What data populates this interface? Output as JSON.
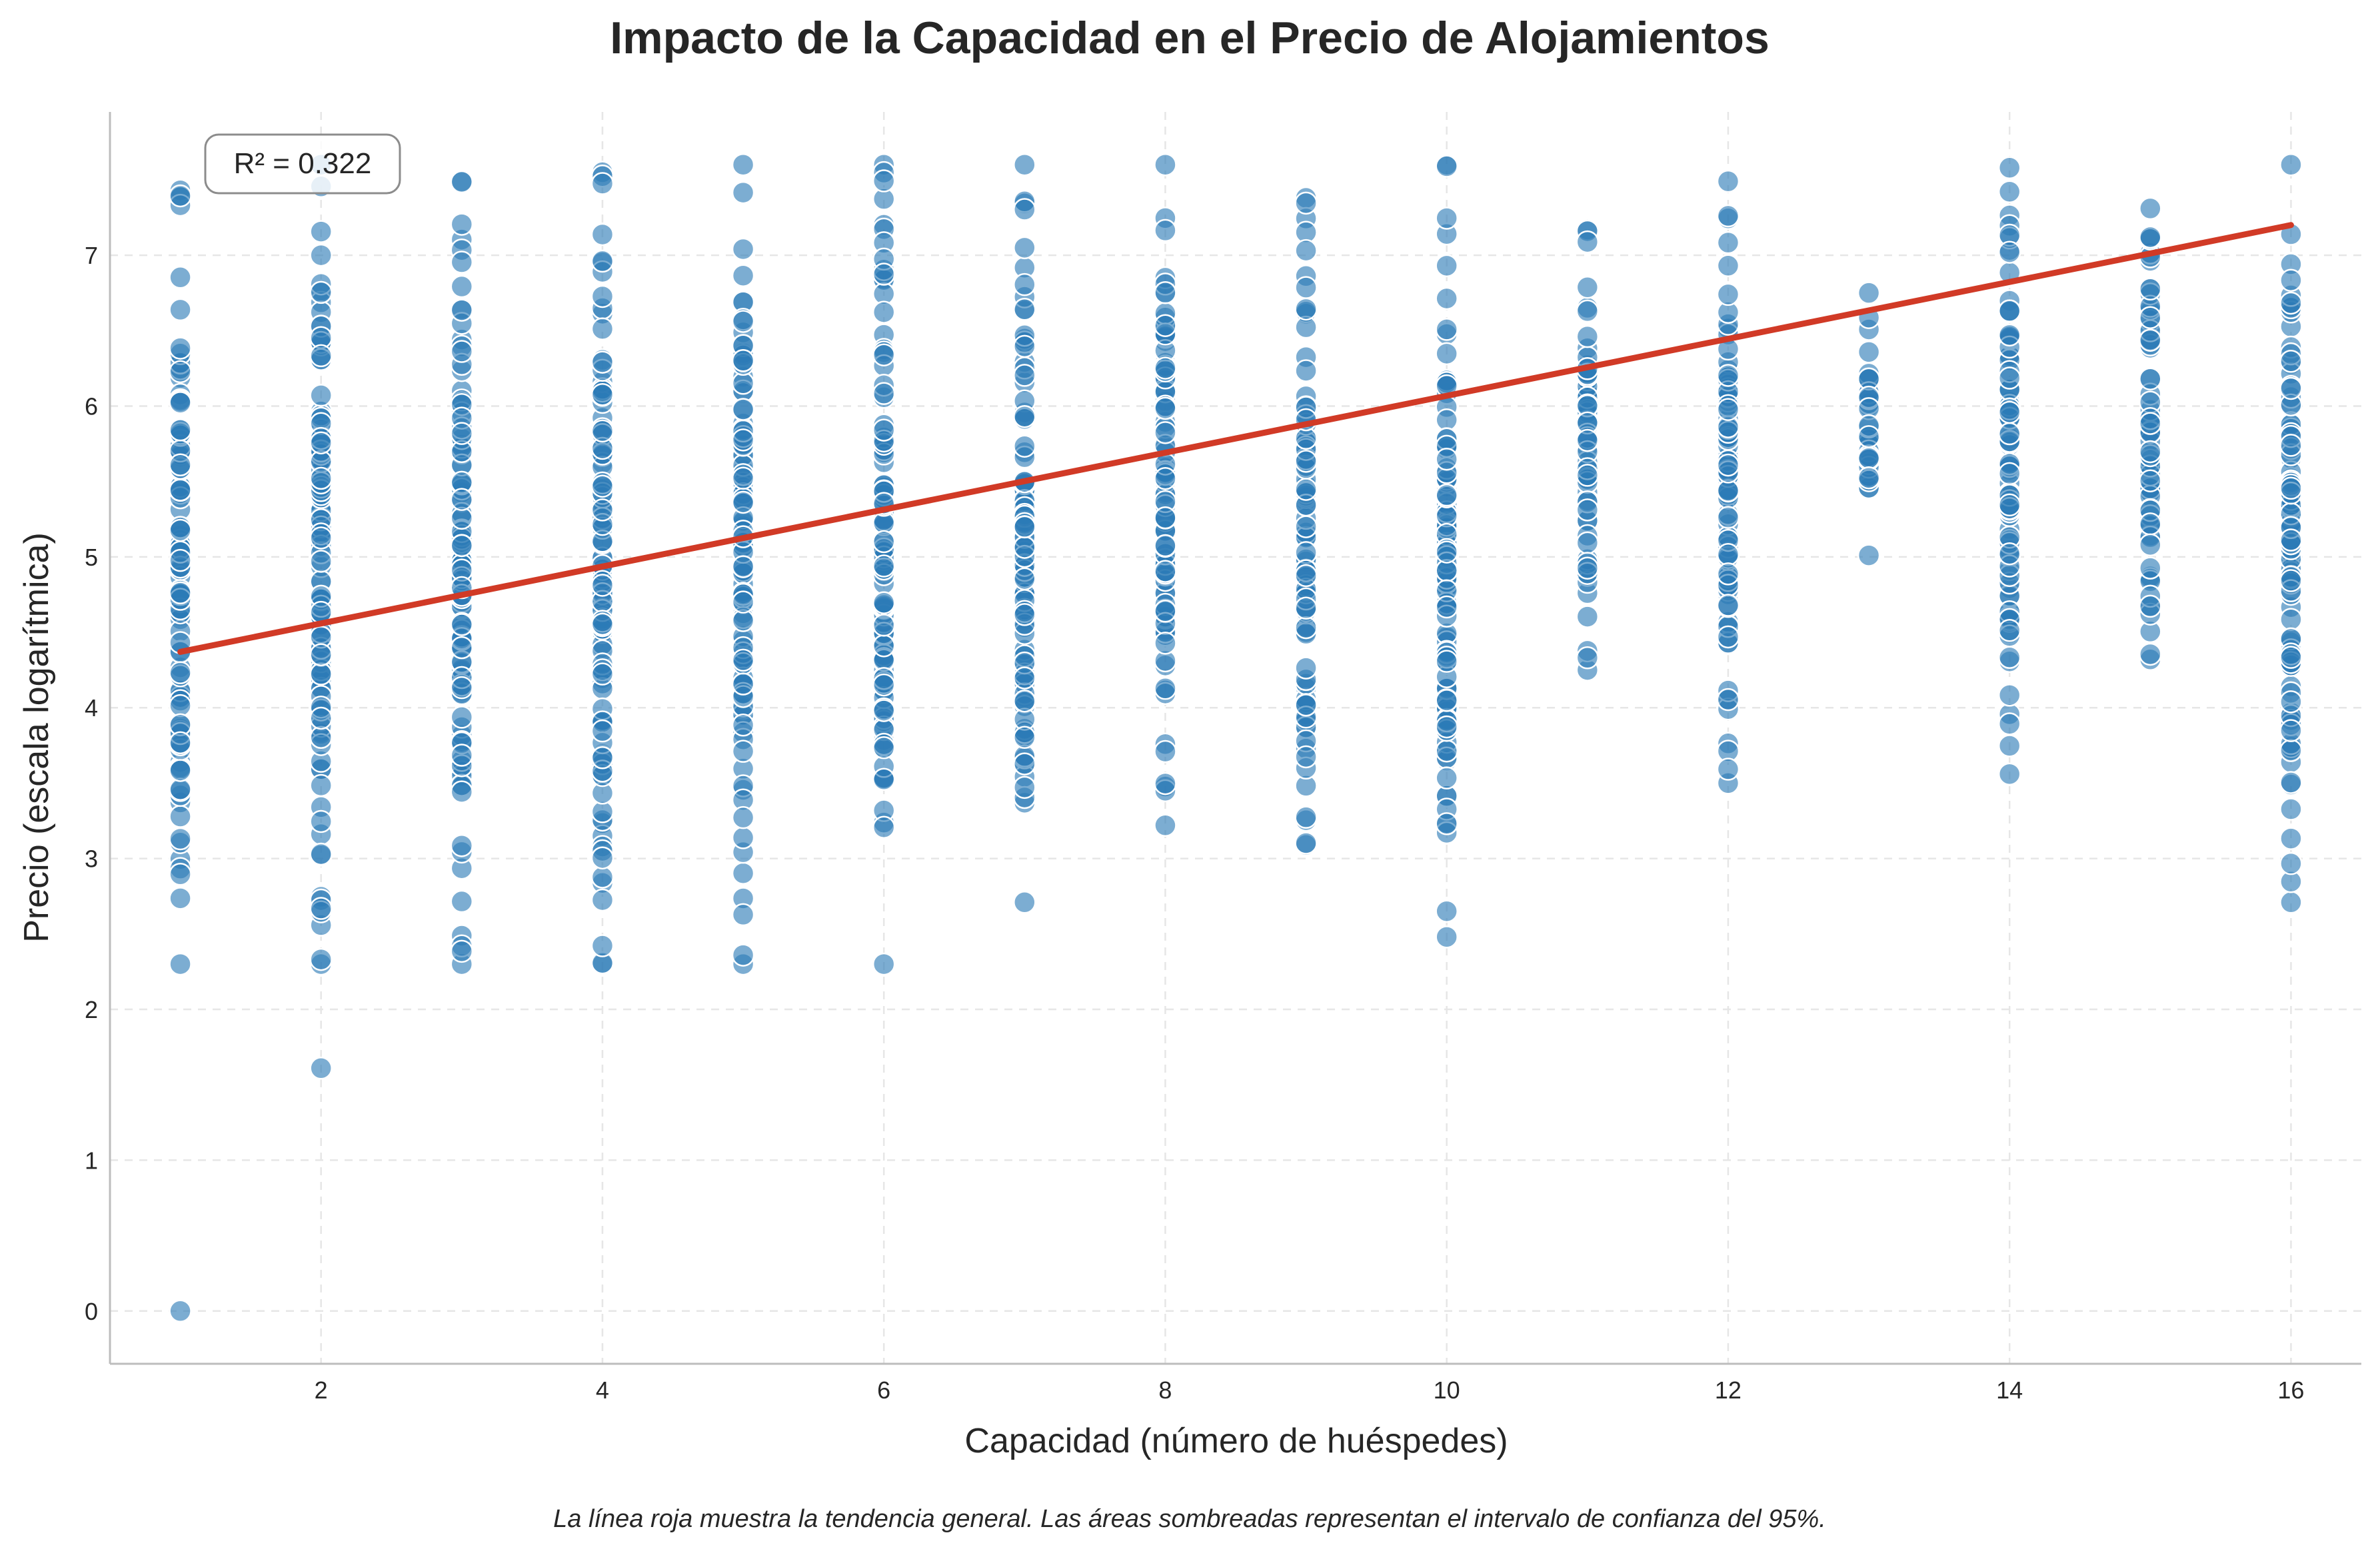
{
  "chart_data": {
    "type": "scatter",
    "title": "Impacto de la Capacidad en el Precio de Alojamientos",
    "xlabel": "Capacidad (número de huéspedes)",
    "ylabel": "Precio (escala logarítmica)",
    "xlim": [
      0.5,
      16.5
    ],
    "ylim": [
      -0.35,
      7.95
    ],
    "xticks": [
      2,
      4,
      6,
      8,
      10,
      12,
      14,
      16
    ],
    "yticks": [
      0,
      1,
      2,
      3,
      4,
      5,
      6,
      7
    ],
    "grid": true,
    "annotation": "R² = 0.322",
    "footnote": "La línea roja muestra la tendencia general. Las áreas sombreadas representan el intervalo de confianza del 95%.",
    "trendline": {
      "x": [
        1,
        16
      ],
      "y": [
        4.37,
        7.2
      ],
      "color": "#d13a26"
    },
    "point_color": "#2c7bb6",
    "clusters": [
      {
        "x": 1,
        "ymin": 2.3,
        "ymax": 7.43,
        "outliers": [
          0.0
        ]
      },
      {
        "x": 2,
        "ymin": 2.3,
        "ymax": 7.6,
        "outliers": [
          1.61
        ]
      },
      {
        "x": 3,
        "ymin": 2.3,
        "ymax": 7.49,
        "outliers": []
      },
      {
        "x": 4,
        "ymin": 2.3,
        "ymax": 7.55,
        "outliers": []
      },
      {
        "x": 5,
        "ymin": 2.3,
        "ymax": 7.6,
        "outliers": []
      },
      {
        "x": 6,
        "ymin": 2.3,
        "ymax": 7.6,
        "outliers": []
      },
      {
        "x": 7,
        "ymin": 2.71,
        "ymax": 7.6,
        "outliers": []
      },
      {
        "x": 8,
        "ymin": 3.22,
        "ymax": 7.6,
        "outliers": []
      },
      {
        "x": 9,
        "ymin": 3.09,
        "ymax": 7.38,
        "outliers": []
      },
      {
        "x": 10,
        "ymin": 2.48,
        "ymax": 7.6,
        "outliers": []
      },
      {
        "x": 11,
        "ymin": 4.25,
        "ymax": 7.17,
        "outliers": []
      },
      {
        "x": 12,
        "ymin": 3.5,
        "ymax": 7.49,
        "outliers": []
      },
      {
        "x": 13,
        "ymin": 5.01,
        "ymax": 6.75,
        "outliers": []
      },
      {
        "x": 14,
        "ymin": 3.56,
        "ymax": 7.58,
        "outliers": []
      },
      {
        "x": 15,
        "ymin": 4.32,
        "ymax": 7.31,
        "outliers": []
      },
      {
        "x": 16,
        "ymin": 2.71,
        "ymax": 7.6,
        "outliers": []
      }
    ]
  }
}
